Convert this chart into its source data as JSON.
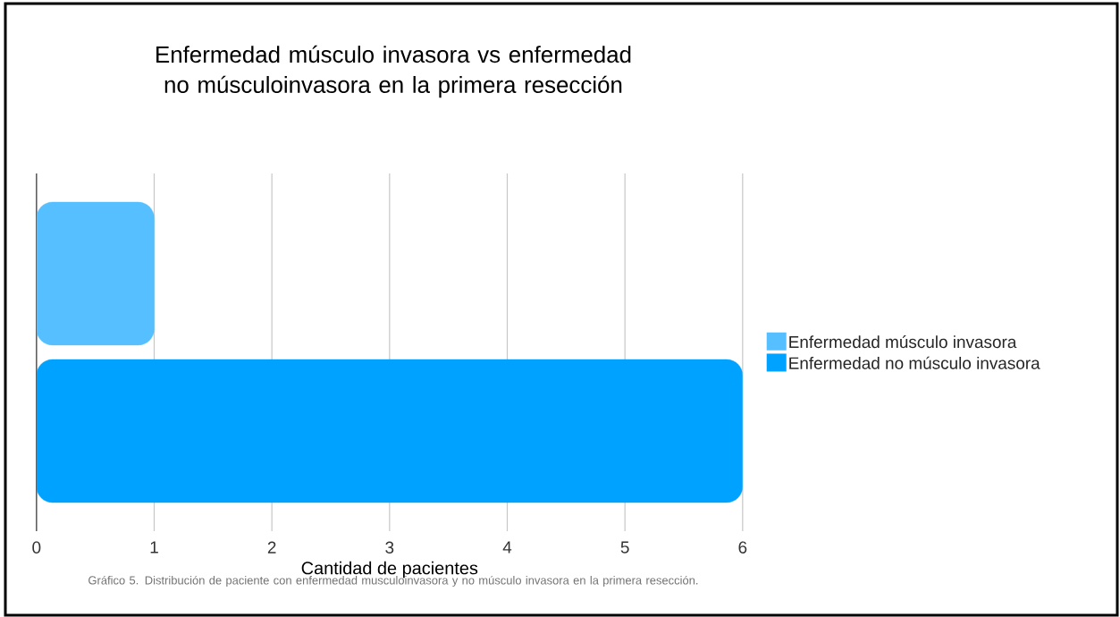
{
  "chart_data": {
    "type": "bar",
    "orientation": "horizontal",
    "title": "Enfermedad músculo invasora vs enfermedad no músculoinvasora en la primera resección",
    "xlabel": "Cantidad de pacientes",
    "categories": [
      null
    ],
    "series": [
      {
        "name": "Enfermedad músculo invasora",
        "color": "#55bfff",
        "values": [
          1
        ]
      },
      {
        "name": "Enfermedad no músculo invasora",
        "color": "#00a2ff",
        "values": [
          6
        ]
      }
    ],
    "xlim": [
      0,
      6
    ],
    "xticks": [
      0,
      1,
      2,
      3,
      4,
      5,
      6
    ],
    "grid": "x",
    "legend": "right",
    "annotations": [
      "Gráfico 5. Distribución de paciente con enfermedad musculoinvasora y no músculo invasora en la primera resección."
    ]
  }
}
